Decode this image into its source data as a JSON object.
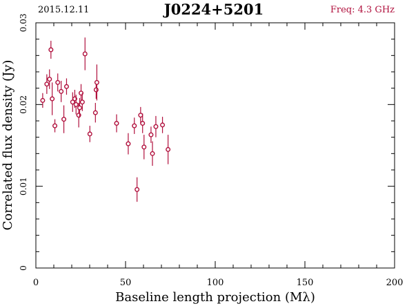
{
  "header": {
    "date": "2015.12.11",
    "source": "J0224+5201",
    "frequency": "Freq: 4.3 GHz"
  },
  "colors": {
    "points": "#b00f3c",
    "frequency_text": "#b00f3c",
    "axes": "#000000"
  },
  "chart_data": {
    "type": "scatter",
    "title": "J0224+5201",
    "xlabel": "Baseline length projection (Mλ)",
    "ylabel": "Correlated flux density (Jy)",
    "xlim": [
      0,
      200
    ],
    "ylim": [
      0,
      0.03
    ],
    "x_ticks": [
      0,
      50,
      100,
      150,
      200
    ],
    "x_tick_labels": [
      "0",
      "50",
      "100",
      "150",
      "200"
    ],
    "y_ticks": [
      0,
      0.01,
      0.02,
      0.03
    ],
    "y_tick_labels": [
      "0",
      "0.01",
      "0.02",
      "0.03"
    ],
    "grid": false,
    "series": [
      {
        "points": [
          {
            "x": 3.8,
            "y": 0.0205,
            "err": 0.0009
          },
          {
            "x": 6.1,
            "y": 0.0225,
            "err": 0.0012
          },
          {
            "x": 7.6,
            "y": 0.0231,
            "err": 0.0012
          },
          {
            "x": 8.4,
            "y": 0.0267,
            "err": 0.0011
          },
          {
            "x": 9.1,
            "y": 0.0207,
            "err": 0.002
          },
          {
            "x": 10.6,
            "y": 0.0174,
            "err": 0.0008
          },
          {
            "x": 12.2,
            "y": 0.0227,
            "err": 0.0011
          },
          {
            "x": 14.1,
            "y": 0.0216,
            "err": 0.0013
          },
          {
            "x": 15.6,
            "y": 0.0182,
            "err": 0.0017
          },
          {
            "x": 17.1,
            "y": 0.0222,
            "err": 0.001
          },
          {
            "x": 20.5,
            "y": 0.0203,
            "err": 0.0012
          },
          {
            "x": 21.7,
            "y": 0.0207,
            "err": 0.0011
          },
          {
            "x": 22.4,
            "y": 0.02,
            "err": 0.0012
          },
          {
            "x": 23.9,
            "y": 0.0187,
            "err": 0.0015
          },
          {
            "x": 24.4,
            "y": 0.0196,
            "err": 0.0012
          },
          {
            "x": 25.2,
            "y": 0.0214,
            "err": 0.0011
          },
          {
            "x": 25.9,
            "y": 0.0203,
            "err": 0.0011
          },
          {
            "x": 27.4,
            "y": 0.0262,
            "err": 0.002
          },
          {
            "x": 30.1,
            "y": 0.0164,
            "err": 0.001
          },
          {
            "x": 33.2,
            "y": 0.019,
            "err": 0.0012
          },
          {
            "x": 33.6,
            "y": 0.0218,
            "err": 0.0011
          },
          {
            "x": 34.0,
            "y": 0.0227,
            "err": 0.0022
          },
          {
            "x": 45.0,
            "y": 0.0177,
            "err": 0.0011
          },
          {
            "x": 51.5,
            "y": 0.0152,
            "err": 0.0013
          },
          {
            "x": 54.9,
            "y": 0.0174,
            "err": 0.001
          },
          {
            "x": 56.4,
            "y": 0.0096,
            "err": 0.0015
          },
          {
            "x": 58.4,
            "y": 0.0187,
            "err": 0.001
          },
          {
            "x": 59.5,
            "y": 0.0177,
            "err": 0.0012
          },
          {
            "x": 60.3,
            "y": 0.0148,
            "err": 0.0015
          },
          {
            "x": 64.2,
            "y": 0.0163,
            "err": 0.001
          },
          {
            "x": 65.0,
            "y": 0.014,
            "err": 0.0015
          },
          {
            "x": 66.9,
            "y": 0.0173,
            "err": 0.0013
          },
          {
            "x": 70.6,
            "y": 0.0175,
            "err": 0.001
          },
          {
            "x": 73.7,
            "y": 0.0145,
            "err": 0.0018
          }
        ]
      }
    ]
  }
}
